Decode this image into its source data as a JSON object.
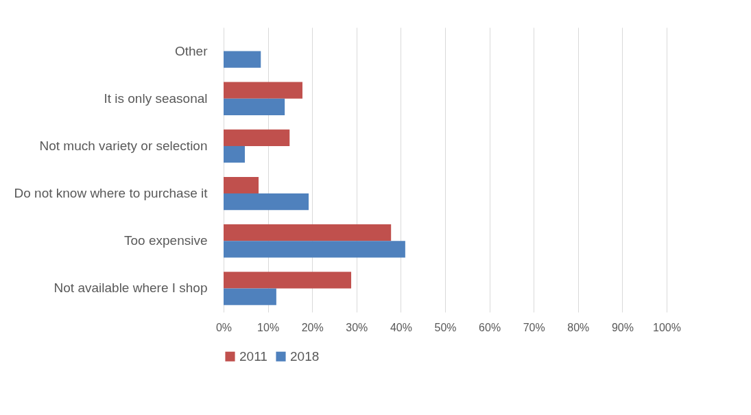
{
  "chart_data": {
    "type": "bar",
    "orientation": "horizontal",
    "categories": [
      "Other",
      "It is only seasonal",
      "Not much variety or selection",
      "Do not know where to purchase it",
      "Too expensive",
      "Not available where I shop"
    ],
    "series": [
      {
        "name": "2011",
        "color": "#c0504d",
        "values": [
          null,
          17.8,
          14.9,
          7.9,
          37.8,
          28.8
        ]
      },
      {
        "name": "2018",
        "color": "#4f81bd",
        "values": [
          8.4,
          13.8,
          4.8,
          19.2,
          41.0,
          11.9
        ]
      }
    ],
    "xlim": [
      0,
      100
    ],
    "xticks": [
      {
        "value": 0,
        "label": "0%"
      },
      {
        "value": 10,
        "label": "10%"
      },
      {
        "value": 20,
        "label": "20%"
      },
      {
        "value": 30,
        "label": "30%"
      },
      {
        "value": 40,
        "label": "40%"
      },
      {
        "value": 50,
        "label": "50%"
      },
      {
        "value": 60,
        "label": "60%"
      },
      {
        "value": 70,
        "label": "70%"
      },
      {
        "value": 80,
        "label": "80%"
      },
      {
        "value": 90,
        "label": "90%"
      },
      {
        "value": 100,
        "label": "100%"
      }
    ],
    "grid": "x",
    "legend": "bottom"
  }
}
